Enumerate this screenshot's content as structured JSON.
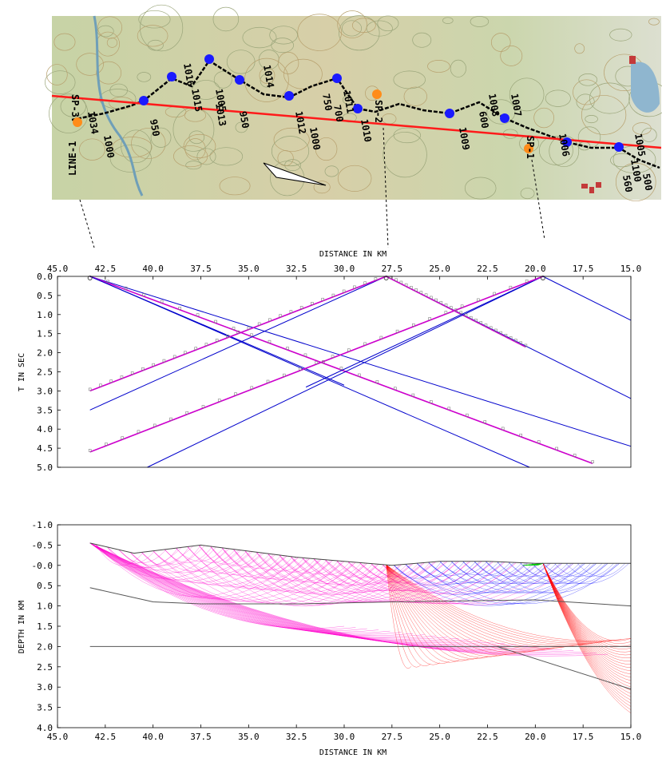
{
  "map": {
    "line_label": "LINE-1",
    "shotpoints": [
      "SP-3",
      "SP-2",
      "SP-1"
    ],
    "station_labels": [
      "1034",
      "1000",
      "950",
      "1016",
      "1015",
      "1005",
      "1014",
      "1013",
      "950",
      "1012",
      "1000",
      "1011",
      "1010",
      "750",
      "700",
      "1009",
      "1008",
      "1007",
      "1006",
      "1005",
      "1100",
      "600",
      "560",
      "500"
    ],
    "colors": {
      "profile": "#ff1a1a",
      "shot": "#ff8c1a",
      "receiver": "#1a1aff",
      "route": "#000000"
    }
  },
  "chart_data": [
    {
      "type": "line",
      "title": "",
      "xlabel": "DISTANCE IN KM",
      "ylabel": "T IN SEC",
      "xaxis_position": "top",
      "x_reversed": true,
      "y_reversed": true,
      "xlim": [
        45.0,
        15.0
      ],
      "ylim": [
        0.0,
        5.0
      ],
      "xticks": [
        "45.0",
        "42.5",
        "40.0",
        "37.5",
        "35.0",
        "32.5",
        "30.0",
        "27.5",
        "25.0",
        "22.5",
        "20.0",
        "17.5",
        "15.0"
      ],
      "yticks": [
        "0.0",
        "0.5",
        "1.0",
        "1.5",
        "2.0",
        "2.5",
        "3.0",
        "3.5",
        "4.0",
        "4.5",
        "5.0"
      ],
      "grid": false,
      "series": [
        {
          "color": "#0000cc",
          "x": [
            43.3,
            15.0
          ],
          "y": [
            0.0,
            4.45
          ]
        },
        {
          "color": "#0000cc",
          "x": [
            43.3,
            30.0
          ],
          "y": [
            0.0,
            2.85
          ]
        },
        {
          "color": "#cc00cc",
          "x": [
            43.3,
            17.0
          ],
          "y": [
            0.0,
            4.9
          ]
        },
        {
          "color": "#0000cc",
          "x": [
            43.3,
            20.3
          ],
          "y": [
            0.0,
            5.0
          ]
        },
        {
          "color": "#0000cc",
          "x": [
            27.8,
            43.3
          ],
          "y": [
            0.0,
            3.5
          ]
        },
        {
          "color": "#cc00cc",
          "x": [
            27.8,
            43.3
          ],
          "y": [
            0.0,
            3.0
          ]
        },
        {
          "color": "#0000cc",
          "x": [
            27.8,
            15.0
          ],
          "y": [
            0.0,
            3.2
          ]
        },
        {
          "color": "#cc00cc",
          "x": [
            27.8,
            20.5
          ],
          "y": [
            0.0,
            1.85
          ]
        },
        {
          "color": "#0000cc",
          "x": [
            19.6,
            15.0
          ],
          "y": [
            0.0,
            1.15
          ]
        },
        {
          "color": "#0000cc",
          "x": [
            19.6,
            40.3
          ],
          "y": [
            0.0,
            5.0
          ]
        },
        {
          "color": "#0000cc",
          "x": [
            19.6,
            32.0
          ],
          "y": [
            0.0,
            2.9
          ]
        },
        {
          "color": "#cc00cc",
          "x": [
            19.6,
            43.3
          ],
          "y": [
            0.0,
            4.6
          ]
        }
      ],
      "observed_color": "#808080"
    },
    {
      "type": "line",
      "title": "",
      "xlabel": "DISTANCE IN KM",
      "ylabel": "DEPTH IN KM",
      "xaxis_position": "bottom",
      "x_reversed": true,
      "y_reversed": true,
      "xlim": [
        45.0,
        15.0
      ],
      "ylim": [
        -1.0,
        4.0
      ],
      "xticks": [
        "45.0",
        "42.5",
        "40.0",
        "37.5",
        "35.0",
        "32.5",
        "30.0",
        "27.5",
        "25.0",
        "22.5",
        "20.0",
        "17.5",
        "15.0"
      ],
      "yticks": [
        "-1.0",
        "-0.5",
        "-0.0",
        "0.5",
        "1.0",
        "1.5",
        "2.0",
        "2.5",
        "3.0",
        "3.5",
        "4.0"
      ],
      "grid": false,
      "surface": {
        "x": [
          43.3,
          41.0,
          37.5,
          35.0,
          32.5,
          30.0,
          27.5,
          25.0,
          22.5,
          20.0,
          15.0
        ],
        "y": [
          -0.55,
          -0.3,
          -0.5,
          -0.35,
          -0.2,
          -0.1,
          0.0,
          -0.1,
          -0.1,
          -0.05,
          -0.05
        ]
      },
      "interfaces": [
        {
          "x": [
            43.3,
            40.0,
            37.5,
            32.5,
            27.5,
            20.0,
            15.0
          ],
          "y": [
            0.55,
            0.9,
            0.95,
            0.95,
            0.9,
            0.85,
            1.0
          ]
        },
        {
          "x": [
            43.3,
            15.0
          ],
          "y": [
            2.0,
            2.0
          ]
        },
        {
          "x": [
            22.0,
            15.0
          ],
          "y": [
            2.0,
            3.05
          ]
        }
      ],
      "shots_x": [
        43.3,
        27.8,
        19.6
      ],
      "ray_colors": {
        "head": "#0000ff",
        "diving": "#ff00cc",
        "deep": "#ff0000",
        "near": "#00cc00"
      }
    }
  ],
  "connectors": [
    "dashed-leader-sp3",
    "dashed-leader-sp2",
    "dashed-leader-sp1"
  ]
}
